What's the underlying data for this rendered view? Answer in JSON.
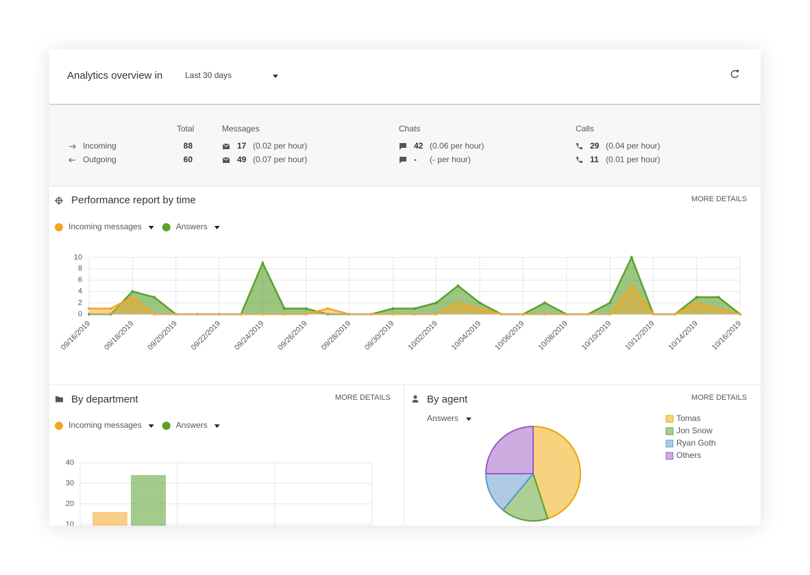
{
  "header": {
    "title": "Analytics overview in",
    "period": "Last 30 days"
  },
  "stats": {
    "columns": [
      "Total",
      "Messages",
      "Chats",
      "Calls"
    ],
    "rows": [
      {
        "label": "Incoming",
        "total": 88,
        "messages": 17,
        "messages_rate": "(0.02 per hour)",
        "chats": 42,
        "chats_rate": "(0.06 per hour)",
        "calls": 29,
        "calls_rate": "(0.04 per hour)"
      },
      {
        "label": "Outgoing",
        "total": 60,
        "messages": 49,
        "messages_rate": "(0.07 per hour)",
        "chats": "-",
        "chats_rate": "(- per hour)",
        "calls": 11,
        "calls_rate": "(0.01 per hour)"
      }
    ]
  },
  "chart_data": [
    {
      "type": "line",
      "title": "Performance report by time",
      "link": "MORE DETAILS",
      "categories": [
        "09/16/2019",
        null,
        "09/18/2019",
        null,
        "09/20/2019",
        null,
        "09/22/2019",
        null,
        "09/24/2019",
        null,
        "09/26/2019",
        null,
        "09/28/2019",
        null,
        "09/30/2019",
        null,
        "10/02/2019",
        null,
        "10/04/2019",
        null,
        "10/06/2019",
        null,
        "10/08/2019",
        null,
        "10/10/2019",
        null,
        "10/12/2019",
        null,
        "10/14/2019",
        null,
        "10/16/2019"
      ],
      "series": [
        {
          "name": "Incoming messages",
          "color": "#f5a623",
          "values": [
            1,
            1,
            3,
            0,
            0,
            0,
            0,
            0,
            0,
            0,
            0,
            1,
            0,
            0,
            0,
            0,
            0,
            2,
            1,
            0,
            0,
            0,
            0,
            0,
            0,
            5,
            0,
            0,
            2,
            1,
            0
          ]
        },
        {
          "name": "Answers",
          "color": "#5aa02c",
          "values": [
            0,
            0,
            4,
            3,
            0,
            0,
            0,
            0,
            9,
            1,
            1,
            0,
            0,
            0,
            1,
            1,
            2,
            5,
            2,
            0,
            0,
            2,
            0,
            0,
            2,
            10,
            0,
            0,
            3,
            3,
            0
          ]
        }
      ],
      "ylim": [
        0,
        10
      ],
      "yticks": [
        0,
        2,
        4,
        6,
        8,
        10
      ],
      "grid": true
    },
    {
      "type": "bar",
      "title": "By department",
      "link": "MORE DETAILS",
      "series": [
        {
          "name": "Incoming messages",
          "color": "#f5a623",
          "values": [
            16
          ]
        },
        {
          "name": "Answers",
          "color": "#5aa02c",
          "values": [
            34
          ]
        }
      ],
      "ylim": [
        0,
        40
      ],
      "yticks": [
        10,
        20,
        30,
        40
      ],
      "grid": true
    },
    {
      "type": "pie",
      "title": "By agent",
      "link": "MORE DETAILS",
      "metric": "Answers",
      "categories": [
        "Tomas",
        "Jon Snow",
        "Ryan Goth",
        "Others"
      ],
      "values": [
        45,
        16,
        14,
        25
      ],
      "colors": [
        "#f0a500",
        "#5aa02c",
        "#5d98c8",
        "#9b59c5"
      ]
    }
  ]
}
